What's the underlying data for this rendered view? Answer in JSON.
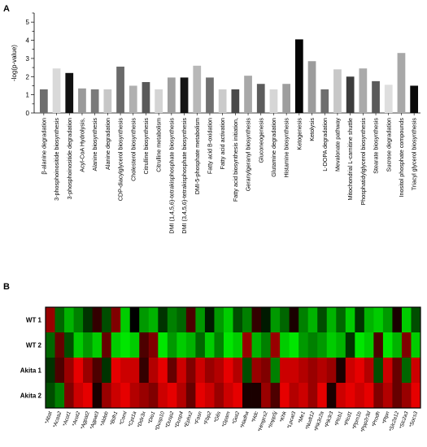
{
  "panel_a_label": "A",
  "panel_b_label": "B",
  "chart_data": [
    {
      "type": "bar",
      "ylabel": "-log(p-value)",
      "ylim": [
        0,
        5.5
      ],
      "yticks": [
        0,
        0.5,
        1,
        1.5,
        2,
        2.5,
        3,
        3.5,
        4,
        4.5,
        5,
        5.5
      ],
      "grid": false,
      "categories": [
        "β-alanine degradation",
        "3-phosphoinositide biosynthesis",
        "3-phosphoinositide degradation",
        "Acyl-CoA Hydrolysis,",
        "Alanine biosynthesis",
        "Alanine degradation",
        "CDP-diacylglycerol biosynthesis",
        "Cholesterol biosynthesis",
        "Citrulline biosynthesis",
        "Citrulline metabolism",
        "DMI (1,4,5,6)-tetrakisphosphate biosynthesis",
        "DMI (3,4,5,6)-tetrakisphosphate biosynthesis",
        "DMI-5-phosphate metabolism",
        "Fatty acid B-oxidation",
        "Fatty acid activation",
        "Fatty acid biosynthesis initiation,",
        "Geranylgeranyl biosynthesis",
        "Gluconeogenesis",
        "Glutamine degradation",
        "Histamine biosynthesis",
        "Ketogenesis",
        "Ketolysis",
        "L-DOPA degradation",
        "Mevalonate pathway",
        "Mitochondrial L-carnitine shuttle",
        "Phosphatidylglycerol biosynthesis",
        "Stearate biosynthesis",
        "Sucrose degradation",
        "Inositol phosphate compounds",
        "Triacyl glycerol biosynthesis"
      ],
      "values": [
        1.3,
        2.45,
        2.2,
        1.35,
        1.3,
        1.3,
        2.55,
        1.5,
        1.7,
        1.3,
        1.95,
        1.95,
        2.6,
        1.95,
        1.3,
        1.3,
        2.05,
        1.6,
        1.3,
        1.6,
        4.05,
        2.85,
        1.3,
        2.4,
        2.0,
        2.45,
        1.75,
        1.55,
        3.3,
        1.5
      ],
      "bar_colors": [
        "#6e6e6e",
        "#d9d9d9",
        "#111111",
        "#9a9a9a",
        "#7a7a7a",
        "#c7c7c7",
        "#6a6a6a",
        "#b0b0b0",
        "#595959",
        "#d4d4d4",
        "#a0a0a0",
        "#141414",
        "#b8b8b8",
        "#707070",
        "#cbcbcb",
        "#4a4a4a",
        "#a8a8a8",
        "#5c5c5c",
        "#d6d6d6",
        "#9e9e9e",
        "#050505",
        "#9c9c9c",
        "#6e6e6e",
        "#c8c8c8",
        "#3c3c3c",
        "#aaaaaa",
        "#5a5a5a",
        "#dedede",
        "#a8a8a8",
        "#0a0a0a"
      ]
    },
    {
      "type": "heatmap",
      "rows": [
        "WT 1",
        "WT 2",
        "Akita 1",
        "Akita 2"
      ],
      "columns": [
        "Abat",
        "Acaa2",
        "Acot1",
        "Acot2",
        "Agpat2",
        "Agpat3",
        "Aldob",
        "Bdh1",
        "Coml",
        "Cpt1a",
        "Ddx3x",
        "Dio1",
        "Dusp10",
        "Dusp2",
        "Dusp4",
        "Ephx2",
        "Fasn",
        "Fbp2",
        "G6s",
        "Gpam",
        "Got2",
        "Hadha",
        "Hdc",
        "Hmgcs2",
        "Impp5j",
        "Khk",
        "Lpcat3",
        "Me1",
        "Nudt12",
        "Pik3c2a",
        "Pik3r3",
        "Plcb1",
        "Plcd1",
        "Ppm1b",
        "Ppp2r3d",
        "Prodh",
        "Ptpn",
        "Slc2a12",
        "Slc2a3",
        "Socs3"
      ],
      "color_scale": "green (low) – black (mid) – red (high)",
      "values": [
        [
          0.6,
          -0.4,
          -0.7,
          -0.5,
          -0.2,
          0.2,
          -0.3,
          0.5,
          -0.8,
          0.0,
          -0.6,
          -0.7,
          -0.2,
          -0.5,
          -0.4,
          0.3,
          -0.6,
          -0.1,
          -0.6,
          -0.8,
          -0.3,
          -0.5,
          0.2,
          -0.1,
          -0.6,
          -0.4,
          0.1,
          -0.5,
          -0.7,
          -0.3,
          -0.7,
          -0.4,
          -0.8,
          -0.2,
          -0.7,
          -0.8,
          -0.6,
          0.1,
          -0.8,
          -0.3
        ],
        [
          -0.4,
          0.4,
          -0.3,
          -0.8,
          -0.6,
          -0.8,
          0.4,
          -0.8,
          -0.9,
          -0.8,
          0.3,
          0.5,
          -0.9,
          -0.6,
          -0.8,
          -0.7,
          -0.4,
          -0.8,
          -0.5,
          -0.9,
          -0.8,
          0.6,
          -0.7,
          -0.5,
          0.6,
          -0.8,
          -0.9,
          -0.6,
          -0.5,
          -0.6,
          -0.8,
          -0.7,
          -0.2,
          -0.9,
          -0.8,
          0.3,
          -0.9,
          -0.7,
          0.5,
          -0.8
        ],
        [
          -0.2,
          0.3,
          0.6,
          0.9,
          0.6,
          0.3,
          -0.2,
          0.9,
          0.8,
          0.8,
          0.2,
          0.7,
          0.9,
          0.4,
          0.8,
          0.5,
          0.8,
          0.6,
          0.7,
          0.9,
          0.7,
          -0.3,
          0.6,
          0.5,
          -0.5,
          0.8,
          0.8,
          0.7,
          0.6,
          0.7,
          0.6,
          0.1,
          0.8,
          0.9,
          0.7,
          -0.3,
          0.8,
          0.4,
          -0.4,
          0.8
        ],
        [
          -0.3,
          -0.5,
          0.5,
          0.8,
          0.9,
          0.1,
          0.6,
          0.8,
          0.9,
          0.7,
          0.6,
          0.5,
          0.8,
          0.9,
          0.7,
          0.4,
          0.9,
          0.8,
          0.6,
          0.8,
          0.9,
          0.1,
          0.1,
          0.6,
          0.3,
          0.9,
          0.7,
          0.8,
          0.6,
          0.9,
          0.1,
          0.8,
          0.9,
          0.8,
          0.9,
          0.5,
          0.7,
          0.4,
          0.6,
          0.9
        ]
      ]
    }
  ]
}
